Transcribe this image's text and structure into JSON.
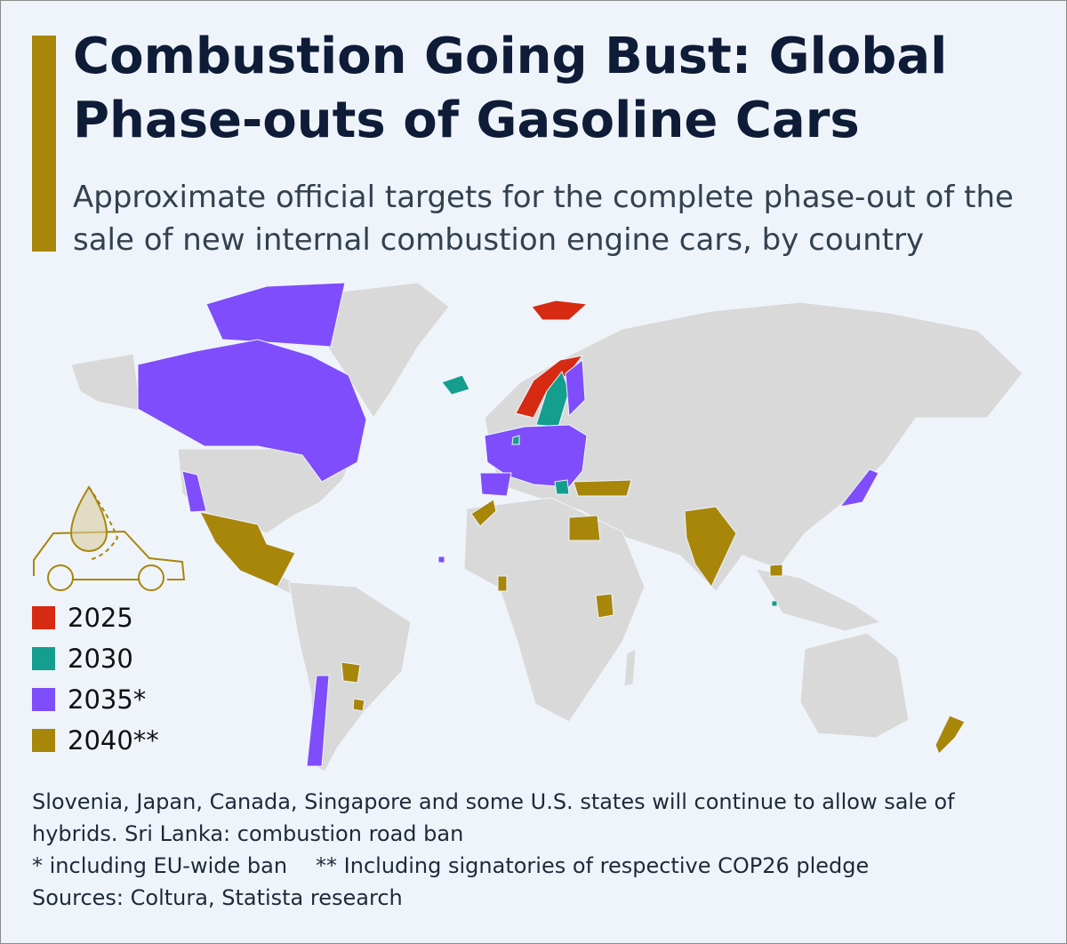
{
  "header": {
    "title": "Combustion Going Bust: Global Phase-outs of Gasoline Cars",
    "subtitle": "Approximate official targets for the complete phase-out of the sale of new internal combustion engine cars, by country"
  },
  "legend": [
    {
      "label": "2025",
      "color": "#d62a12"
    },
    {
      "label": "2030",
      "color": "#139e8e"
    },
    {
      "label": "2035*",
      "color": "#7f4dfb"
    },
    {
      "label": "2040**",
      "color": "#a8860a"
    }
  ],
  "notes": [
    "Slovenia, Japan, Canada, Singapore and some U.S. states will continue to allow sale of hybrids. Sri Lanka: combustion road ban",
    "* including EU-wide ban",
    "** Including signatories of respective COP26 pledge",
    "Sources: Coltura, Statista research"
  ]
}
